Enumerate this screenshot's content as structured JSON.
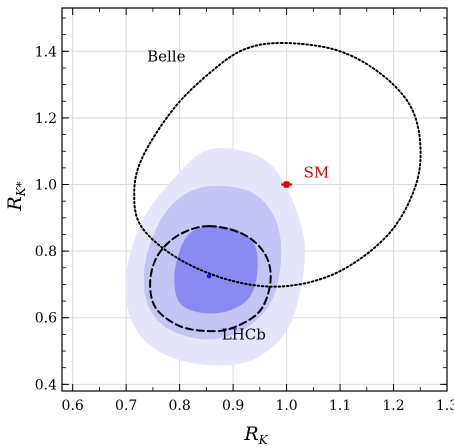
{
  "chart_data": {
    "type": "scatter",
    "xlabel": {
      "main": "R",
      "sub": "K"
    },
    "ylabel": {
      "main": "R",
      "sub": "K*"
    },
    "xlim": [
      0.58,
      1.3
    ],
    "ylim": [
      0.38,
      1.53
    ],
    "xticks": [
      "0.6",
      "0.7",
      "0.8",
      "0.9",
      "1.0",
      "1.1",
      "1.2",
      "1.3"
    ],
    "yticks": [
      "0.4",
      "0.6",
      "0.8",
      "1.0",
      "1.2",
      "1.4"
    ],
    "grid": true,
    "colors": {
      "sigma3": "#e6e6fb",
      "sigma2": "#c4c4f5",
      "sigma1": "#8a8af0",
      "best_fit": "#1a1acc",
      "sm": "#e00000",
      "grid": "#d9d9d9",
      "contour_lines": "#000000"
    },
    "best_fit": {
      "x": 0.855,
      "y": 0.725
    },
    "sm_point": {
      "label": "SM",
      "x": 1.0,
      "y": 1.0,
      "xerr": 0.01,
      "yerr": 0.01
    },
    "regions": [
      {
        "level": "3sigma",
        "points": [
          [
            0.855,
            1.105
          ],
          [
            0.94,
            1.09
          ],
          [
            0.99,
            1.02
          ],
          [
            1.03,
            0.86
          ],
          [
            1.03,
            0.72
          ],
          [
            1.0,
            0.56
          ],
          [
            0.93,
            0.47
          ],
          [
            0.84,
            0.46
          ],
          [
            0.76,
            0.5
          ],
          [
            0.71,
            0.59
          ],
          [
            0.7,
            0.73
          ],
          [
            0.73,
            0.89
          ],
          [
            0.79,
            1.02
          ]
        ]
      },
      {
        "level": "2sigma",
        "points": [
          [
            0.855,
            0.995
          ],
          [
            0.93,
            0.98
          ],
          [
            0.975,
            0.91
          ],
          [
            0.99,
            0.8
          ],
          [
            0.975,
            0.66
          ],
          [
            0.925,
            0.57
          ],
          [
            0.855,
            0.535
          ],
          [
            0.78,
            0.565
          ],
          [
            0.74,
            0.64
          ],
          [
            0.735,
            0.76
          ],
          [
            0.76,
            0.88
          ],
          [
            0.8,
            0.96
          ]
        ]
      },
      {
        "level": "1sigma",
        "points": [
          [
            0.855,
            0.875
          ],
          [
            0.905,
            0.865
          ],
          [
            0.94,
            0.82
          ],
          [
            0.945,
            0.735
          ],
          [
            0.93,
            0.66
          ],
          [
            0.89,
            0.62
          ],
          [
            0.84,
            0.615
          ],
          [
            0.8,
            0.645
          ],
          [
            0.79,
            0.72
          ],
          [
            0.8,
            0.8
          ],
          [
            0.82,
            0.855
          ]
        ]
      }
    ],
    "contours": [
      {
        "label": "Belle",
        "style": "dotted",
        "label_pos": [
          0.775,
          1.37
        ],
        "points": [
          [
            0.99,
            1.425
          ],
          [
            1.09,
            1.405
          ],
          [
            1.17,
            1.34
          ],
          [
            1.23,
            1.24
          ],
          [
            1.25,
            1.12
          ],
          [
            1.24,
            0.99
          ],
          [
            1.19,
            0.85
          ],
          [
            1.1,
            0.74
          ],
          [
            1.0,
            0.695
          ],
          [
            0.9,
            0.71
          ],
          [
            0.8,
            0.775
          ],
          [
            0.73,
            0.87
          ],
          [
            0.715,
            0.97
          ],
          [
            0.73,
            1.08
          ],
          [
            0.79,
            1.23
          ],
          [
            0.86,
            1.34
          ],
          [
            0.92,
            1.405
          ]
        ]
      },
      {
        "label": "LHCb",
        "style": "dashed",
        "label_pos": [
          0.92,
          0.535
        ],
        "points": [
          [
            0.855,
            0.875
          ],
          [
            0.92,
            0.85
          ],
          [
            0.96,
            0.79
          ],
          [
            0.97,
            0.71
          ],
          [
            0.95,
            0.62
          ],
          [
            0.9,
            0.57
          ],
          [
            0.855,
            0.56
          ],
          [
            0.8,
            0.575
          ],
          [
            0.755,
            0.63
          ],
          [
            0.745,
            0.71
          ],
          [
            0.76,
            0.79
          ],
          [
            0.8,
            0.85
          ]
        ]
      }
    ]
  }
}
